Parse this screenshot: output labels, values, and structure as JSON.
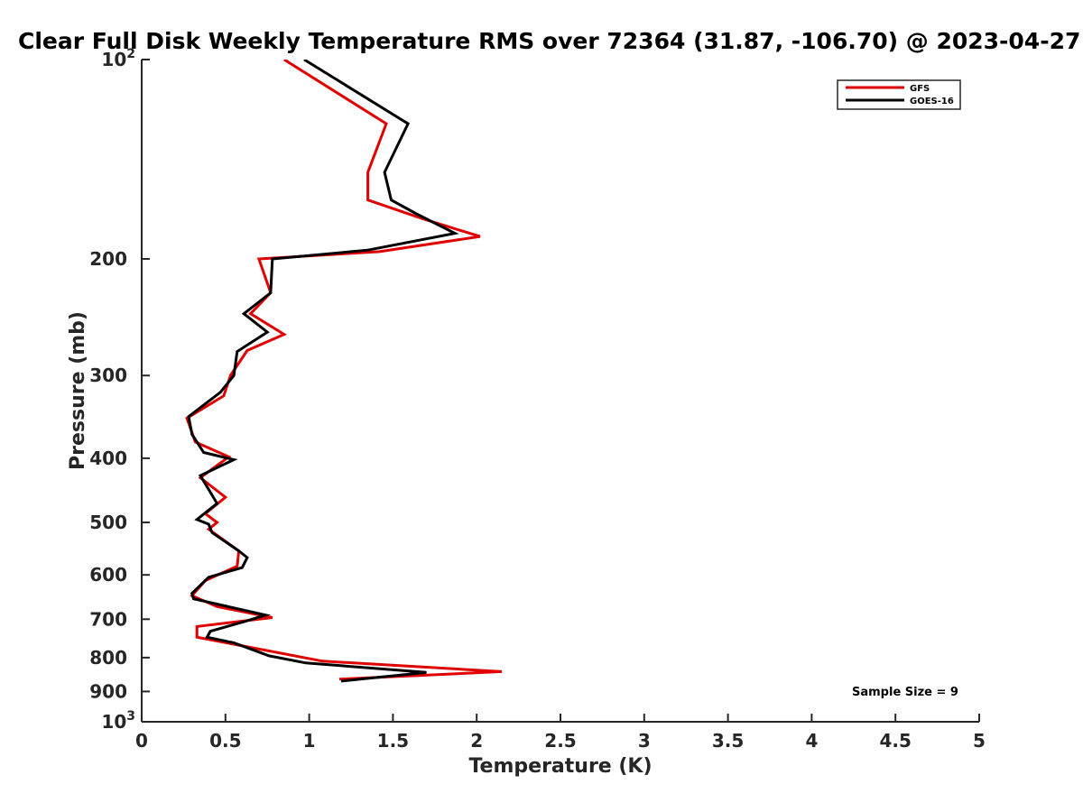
{
  "chart_data": {
    "type": "line",
    "title": "Clear Full Disk Weekly Temperature RMS over 72364 (31.87, -106.70) @ 2023-04-27",
    "xlabel": "Temperature (K)",
    "ylabel": "Pressure (mb)",
    "xlim": [
      0,
      5
    ],
    "ylim": [
      100,
      1000
    ],
    "y_scale": "log",
    "y_reversed": true,
    "grid": false,
    "legend_position": "top-right",
    "x_ticks": [
      {
        "value": 0,
        "label": "0"
      },
      {
        "value": 0.5,
        "label": "0.5"
      },
      {
        "value": 1,
        "label": "1"
      },
      {
        "value": 1.5,
        "label": "1.5"
      },
      {
        "value": 2,
        "label": "2"
      },
      {
        "value": 2.5,
        "label": "2.5"
      },
      {
        "value": 3,
        "label": "3"
      },
      {
        "value": 3.5,
        "label": "3.5"
      },
      {
        "value": 4,
        "label": "4"
      },
      {
        "value": 4.5,
        "label": "4.5"
      },
      {
        "value": 5,
        "label": "5"
      }
    ],
    "y_ticks": [
      {
        "value": 100,
        "label": "10",
        "sup": "2"
      },
      {
        "value": 200,
        "label": "200",
        "sup": ""
      },
      {
        "value": 300,
        "label": "300",
        "sup": ""
      },
      {
        "value": 400,
        "label": "400",
        "sup": ""
      },
      {
        "value": 500,
        "label": "500",
        "sup": ""
      },
      {
        "value": 600,
        "label": "600",
        "sup": ""
      },
      {
        "value": 700,
        "label": "700",
        "sup": ""
      },
      {
        "value": 800,
        "label": "800",
        "sup": ""
      },
      {
        "value": 900,
        "label": "900",
        "sup": ""
      },
      {
        "value": 1000,
        "label": "10",
        "sup": "3"
      }
    ],
    "series": [
      {
        "name": "GFS",
        "color": "#e00000",
        "points": [
          [
            0.85,
            100
          ],
          [
            1.46,
            125
          ],
          [
            1.35,
            148
          ],
          [
            1.35,
            163
          ],
          [
            1.68,
            174
          ],
          [
            2.02,
            185
          ],
          [
            1.42,
            195
          ],
          [
            0.7,
            200
          ],
          [
            0.77,
            225
          ],
          [
            0.65,
            242
          ],
          [
            0.85,
            260
          ],
          [
            0.63,
            275
          ],
          [
            0.53,
            300
          ],
          [
            0.49,
            322
          ],
          [
            0.27,
            348
          ],
          [
            0.32,
            378
          ],
          [
            0.52,
            398
          ],
          [
            0.35,
            428
          ],
          [
            0.5,
            458
          ],
          [
            0.38,
            485
          ],
          [
            0.45,
            500
          ],
          [
            0.4,
            512
          ],
          [
            0.58,
            552
          ],
          [
            0.57,
            582
          ],
          [
            0.38,
            612
          ],
          [
            0.3,
            645
          ],
          [
            0.45,
            670
          ],
          [
            0.78,
            696
          ],
          [
            0.33,
            718
          ],
          [
            0.33,
            745
          ],
          [
            1.08,
            810
          ],
          [
            2.15,
            840
          ],
          [
            1.18,
            862
          ]
        ]
      },
      {
        "name": "GOES-16",
        "color": "#000000",
        "points": [
          [
            0.97,
            100
          ],
          [
            1.59,
            125
          ],
          [
            1.45,
            148
          ],
          [
            1.49,
            163
          ],
          [
            1.64,
            171
          ],
          [
            1.87,
            183
          ],
          [
            1.35,
            194
          ],
          [
            0.78,
            200
          ],
          [
            0.77,
            225
          ],
          [
            0.61,
            242
          ],
          [
            0.75,
            258
          ],
          [
            0.57,
            276
          ],
          [
            0.55,
            300
          ],
          [
            0.47,
            318
          ],
          [
            0.28,
            346
          ],
          [
            0.3,
            368
          ],
          [
            0.37,
            392
          ],
          [
            0.55,
            402
          ],
          [
            0.35,
            425
          ],
          [
            0.45,
            468
          ],
          [
            0.33,
            495
          ],
          [
            0.4,
            503
          ],
          [
            0.42,
            518
          ],
          [
            0.58,
            552
          ],
          [
            0.63,
            565
          ],
          [
            0.6,
            585
          ],
          [
            0.4,
            605
          ],
          [
            0.3,
            640
          ],
          [
            0.31,
            652
          ],
          [
            0.74,
            690
          ],
          [
            0.62,
            705
          ],
          [
            0.41,
            730
          ],
          [
            0.39,
            745
          ],
          [
            0.55,
            760
          ],
          [
            0.76,
            795
          ],
          [
            0.98,
            815
          ],
          [
            1.7,
            842
          ],
          [
            1.19,
            868
          ]
        ]
      }
    ],
    "annotations": [
      {
        "text": "Sample Size = 9"
      }
    ]
  }
}
